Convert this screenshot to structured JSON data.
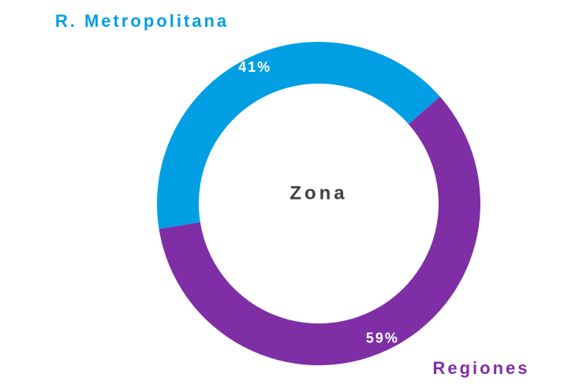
{
  "chart_data": {
    "type": "donut",
    "title": "Zona",
    "categories": [
      "R. Metropolitana",
      "Regiones"
    ],
    "values": [
      41,
      59
    ],
    "value_labels": [
      "41%",
      "59%"
    ],
    "colors": [
      "#009fe3",
      "#7f2ea6"
    ]
  }
}
